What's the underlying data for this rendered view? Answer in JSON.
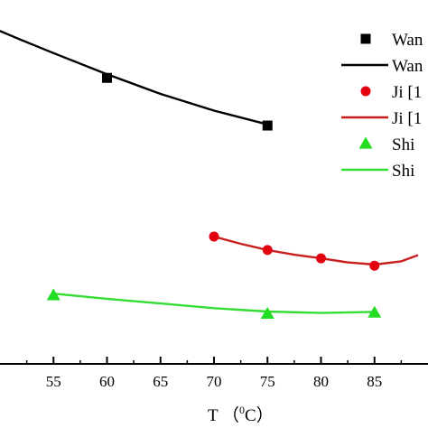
{
  "chart_data": {
    "type": "scatter",
    "xlabel": "T （°C）",
    "xlabel_parts": {
      "prefix": "T （",
      "sup": "0",
      "suffix": "C）"
    },
    "xlim": [
      50,
      90
    ],
    "ylim": [
      0,
      100
    ],
    "x_ticks": [
      "55",
      "60",
      "65",
      "70",
      "75",
      "80",
      "85"
    ],
    "grid": false,
    "legend_position": "top-right",
    "series": [
      {
        "name": "Wan",
        "kind": "points",
        "marker": "square",
        "color": "#000000",
        "points": [
          {
            "x": 60,
            "y": 78.6
          },
          {
            "x": 75,
            "y": 65.5
          }
        ]
      },
      {
        "name": "Wan",
        "kind": "line",
        "color": "#000000",
        "points": [
          {
            "x": 50,
            "y": 91.5
          },
          {
            "x": 52,
            "y": 89.0
          },
          {
            "x": 55,
            "y": 85.4
          },
          {
            "x": 60,
            "y": 79.6
          },
          {
            "x": 65,
            "y": 74.2
          },
          {
            "x": 70,
            "y": 69.6
          },
          {
            "x": 75,
            "y": 65.8
          }
        ]
      },
      {
        "name": "Ji [1",
        "kind": "points",
        "marker": "circle",
        "color": "#e3000f",
        "points": [
          {
            "x": 70,
            "y": 35.0
          },
          {
            "x": 75,
            "y": 31.3
          },
          {
            "x": 80,
            "y": 29.0
          },
          {
            "x": 85,
            "y": 27.0
          }
        ]
      },
      {
        "name": "Ji [1",
        "kind": "line",
        "color": "#c81e1e",
        "points": [
          {
            "x": 70,
            "y": 35.0
          },
          {
            "x": 72.5,
            "y": 33.0
          },
          {
            "x": 75,
            "y": 31.3
          },
          {
            "x": 77.5,
            "y": 30.0
          },
          {
            "x": 80,
            "y": 29.0
          },
          {
            "x": 82.5,
            "y": 27.9
          },
          {
            "x": 85,
            "y": 27.3
          },
          {
            "x": 87.5,
            "y": 28.2
          },
          {
            "x": 89,
            "y": 29.8
          }
        ]
      },
      {
        "name": "Shi",
        "kind": "points",
        "marker": "triangle",
        "color": "#22dd22",
        "points": [
          {
            "x": 55,
            "y": 18.9
          },
          {
            "x": 75,
            "y": 13.8
          },
          {
            "x": 85,
            "y": 14.1
          }
        ]
      },
      {
        "name": "Shi",
        "kind": "line",
        "color": "#33dd33",
        "points": [
          {
            "x": 55,
            "y": 19.3
          },
          {
            "x": 60,
            "y": 17.9
          },
          {
            "x": 65,
            "y": 16.6
          },
          {
            "x": 70,
            "y": 15.3
          },
          {
            "x": 75,
            "y": 14.4
          },
          {
            "x": 80,
            "y": 14.0
          },
          {
            "x": 85,
            "y": 14.3
          }
        ]
      }
    ]
  }
}
